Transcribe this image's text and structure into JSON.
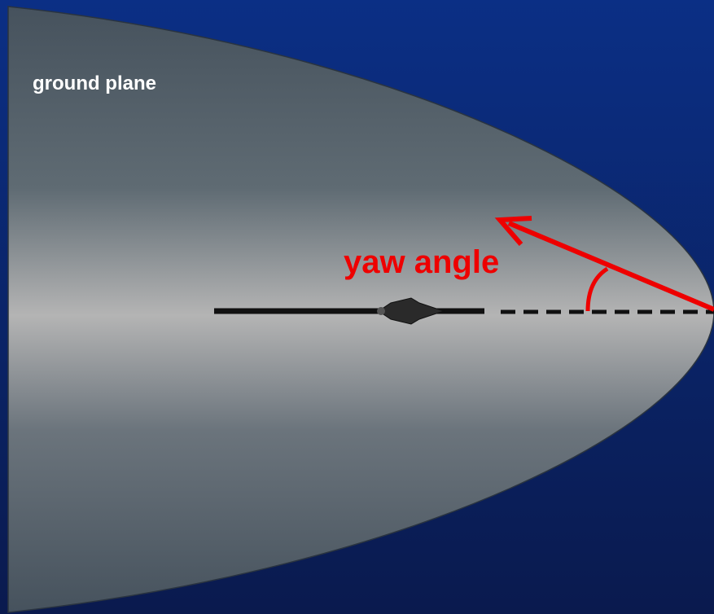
{
  "labels": {
    "ground_plane": "ground plane",
    "yaw_angle": "yaw angle"
  }
}
